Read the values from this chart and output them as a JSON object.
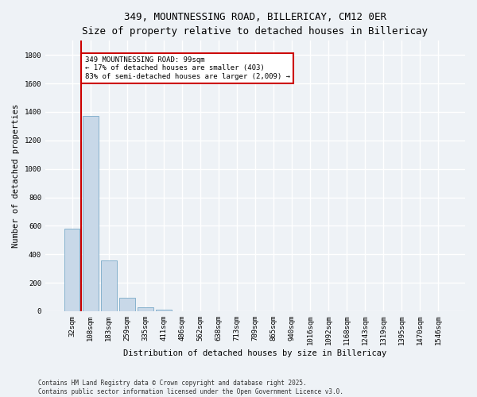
{
  "title": "349, MOUNTNESSING ROAD, BILLERICAY, CM12 0ER",
  "subtitle": "Size of property relative to detached houses in Billericay",
  "xlabel": "Distribution of detached houses by size in Billericay",
  "ylabel": "Number of detached properties",
  "bar_labels": [
    "32sqm",
    "108sqm",
    "183sqm",
    "259sqm",
    "335sqm",
    "411sqm",
    "486sqm",
    "562sqm",
    "638sqm",
    "713sqm",
    "789sqm",
    "865sqm",
    "940sqm",
    "1016sqm",
    "1092sqm",
    "1168sqm",
    "1243sqm",
    "1319sqm",
    "1395sqm",
    "1470sqm",
    "1546sqm"
  ],
  "bar_values": [
    580,
    1370,
    355,
    95,
    30,
    12,
    0,
    0,
    0,
    0,
    0,
    0,
    0,
    0,
    0,
    0,
    0,
    0,
    0,
    0,
    0
  ],
  "bar_color": "#c8d8e8",
  "bar_edge_color": "#7aaac8",
  "vline_color": "#cc0000",
  "annotation_text": "349 MOUNTNESSING ROAD: 99sqm\n← 17% of detached houses are smaller (403)\n83% of semi-detached houses are larger (2,009) →",
  "annotation_box_color": "#ffffff",
  "annotation_box_edge": "#cc0000",
  "ylim": [
    0,
    1900
  ],
  "yticks": [
    0,
    200,
    400,
    600,
    800,
    1000,
    1200,
    1400,
    1600,
    1800
  ],
  "footnote": "Contains HM Land Registry data © Crown copyright and database right 2025.\nContains public sector information licensed under the Open Government Licence v3.0.",
  "bg_color": "#eef2f6",
  "grid_color": "#ffffff",
  "title_fontsize": 9,
  "subtitle_fontsize": 8.5,
  "xlabel_fontsize": 7.5,
  "ylabel_fontsize": 7.5,
  "tick_fontsize": 6.5,
  "annotation_fontsize": 6.5,
  "footnote_fontsize": 5.5
}
